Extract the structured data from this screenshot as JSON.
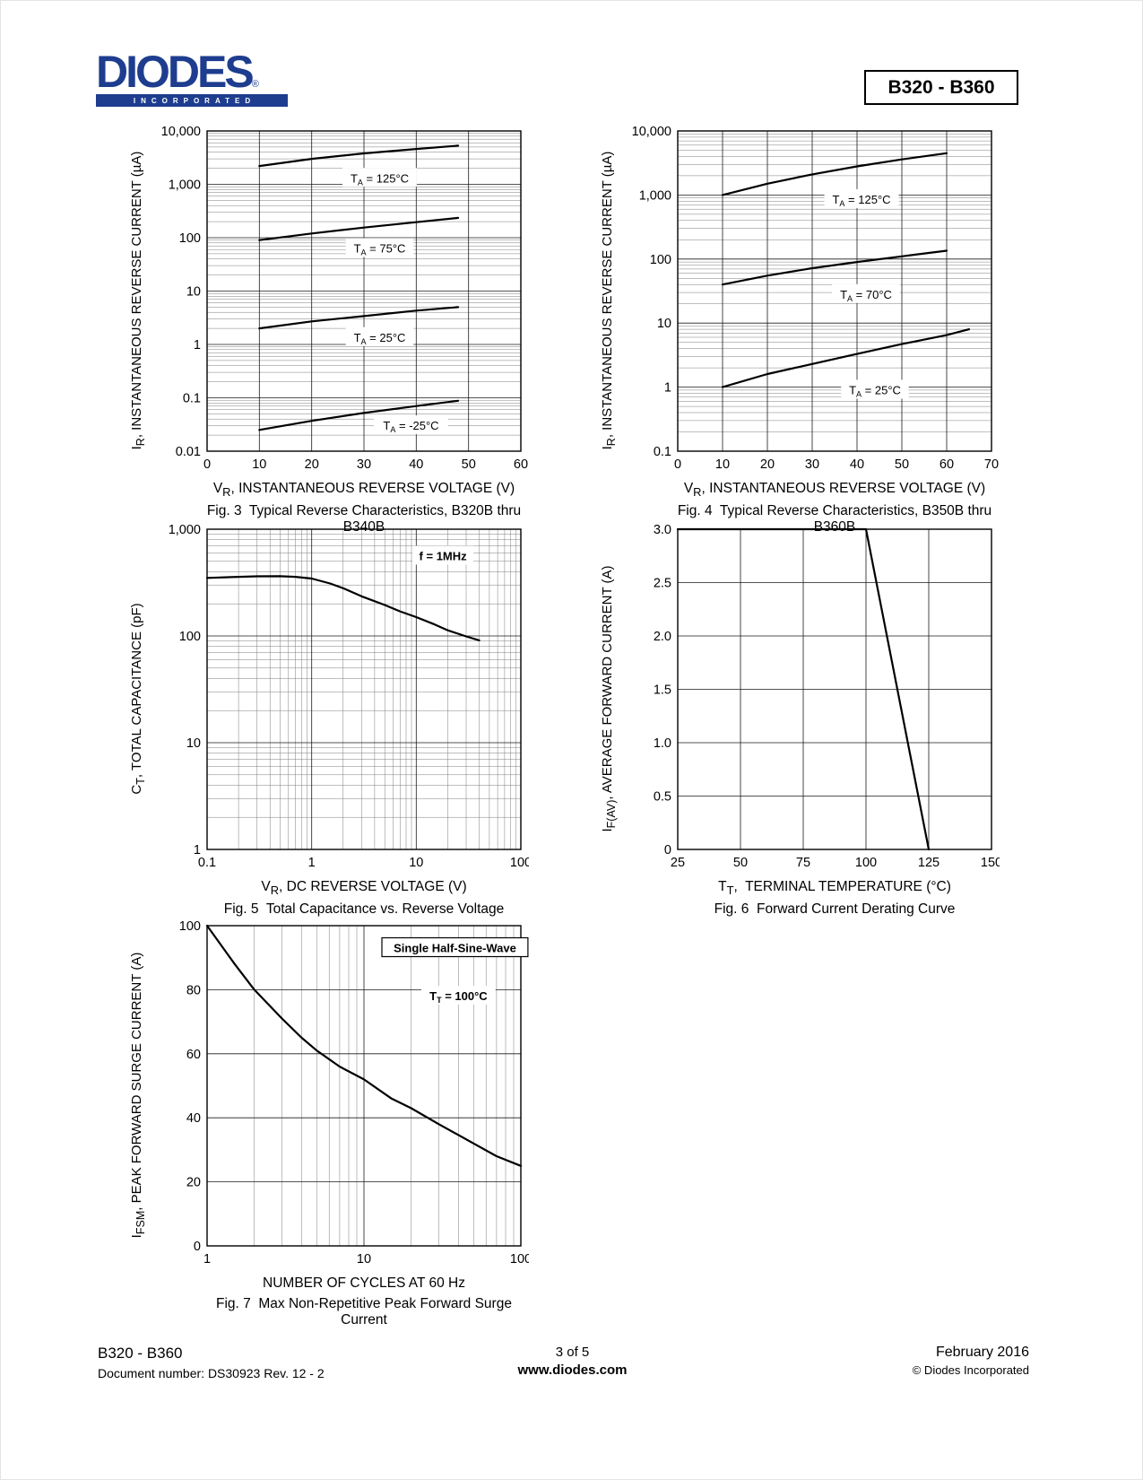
{
  "colors": {
    "logo_blue": "#1e3d8f"
  },
  "header": {
    "logo": {
      "name": "DIODES",
      "registered": "®",
      "tagline": "INCORPORATED"
    },
    "part_number_box": "B320 - B360"
  },
  "footer": {
    "left": {
      "line1": "B320 - B360",
      "line2": "Document number: DS30923 Rev. 12 - 2"
    },
    "center": {
      "line1": "3 of 5",
      "line2": "www.diodes.com"
    },
    "right": {
      "line1": "February 2016",
      "line2": "© Diodes Incorporated"
    }
  },
  "chart_data": [
    {
      "id": "fig3",
      "type": "line",
      "caption": "Fig. 3  Typical Reverse Characteristics, B320B thru B340B",
      "xlabel": "V~R~, INSTANTANEOUS REVERSE VOLTAGE (V)",
      "ylabel": "I~R~, INSTANTANEOUS REVERSE CURRENT (µA)",
      "xscale": "linear",
      "xlim": [
        0,
        60
      ],
      "xticks": [
        0,
        10,
        20,
        30,
        40,
        50,
        60
      ],
      "xtick_labels": [
        "0",
        "10",
        "20",
        "30",
        "40",
        "50",
        "60"
      ],
      "yscale": "log",
      "ylim": [
        0.01,
        10000
      ],
      "yticks": [
        0.01,
        0.1,
        1,
        10,
        100,
        1000,
        10000
      ],
      "ytick_labels": [
        "0.01",
        "0.1",
        "1",
        "10",
        "100",
        "1,000",
        "10,000"
      ],
      "grid": true,
      "series": [
        {
          "name": "TA = 125°C",
          "points": [
            [
              10,
              2200
            ],
            [
              20,
              3000
            ],
            [
              30,
              3800
            ],
            [
              40,
              4600
            ],
            [
              48,
              5300
            ]
          ]
        },
        {
          "name": "TA = 75°C",
          "points": [
            [
              10,
              90
            ],
            [
              20,
              120
            ],
            [
              30,
              155
            ],
            [
              40,
              195
            ],
            [
              48,
              235
            ]
          ]
        },
        {
          "name": "TA = 25°C",
          "points": [
            [
              10,
              2.0
            ],
            [
              20,
              2.7
            ],
            [
              30,
              3.4
            ],
            [
              40,
              4.3
            ],
            [
              48,
              5.0
            ]
          ]
        },
        {
          "name": "TA = -25°C",
          "points": [
            [
              10,
              0.025
            ],
            [
              20,
              0.037
            ],
            [
              30,
              0.052
            ],
            [
              40,
              0.07
            ],
            [
              48,
              0.088
            ]
          ]
        }
      ],
      "annotations": [
        {
          "x": 33,
          "y": 1300,
          "text": "T~A~ = 125°C",
          "whitebg": true
        },
        {
          "x": 33,
          "y": 63,
          "text": "T~A~ = 75°C",
          "whitebg": true
        },
        {
          "x": 33,
          "y": 1.35,
          "text": "T~A~ = 25°C",
          "whitebg": true
        },
        {
          "x": 39,
          "y": 0.03,
          "text": "T~A~ = -25°C",
          "whitebg": true
        }
      ]
    },
    {
      "id": "fig4",
      "type": "line",
      "caption": "Fig. 4  Typical Reverse Characteristics, B350B thru B360B",
      "xlabel": "V~R~, INSTANTANEOUS REVERSE VOLTAGE (V)",
      "ylabel": "I~R~, INSTANTANEOUS REVERSE CURRENT (µA)",
      "xscale": "linear",
      "xlim": [
        0,
        70
      ],
      "xticks": [
        0,
        10,
        20,
        30,
        40,
        50,
        60,
        70
      ],
      "xtick_labels": [
        "0",
        "10",
        "20",
        "30",
        "40",
        "50",
        "60",
        "70"
      ],
      "yscale": "log",
      "ylim": [
        0.1,
        10000
      ],
      "yticks": [
        0.1,
        1,
        10,
        100,
        1000,
        10000
      ],
      "ytick_labels": [
        "0.1",
        "1",
        "10",
        "100",
        "1,000",
        "10,000"
      ],
      "grid": true,
      "series": [
        {
          "name": "TA = 125°C",
          "points": [
            [
              10,
              1000
            ],
            [
              20,
              1500
            ],
            [
              30,
              2100
            ],
            [
              40,
              2800
            ],
            [
              50,
              3600
            ],
            [
              60,
              4500
            ]
          ]
        },
        {
          "name": "TA = 70°C",
          "points": [
            [
              10,
              40
            ],
            [
              20,
              55
            ],
            [
              30,
              72
            ],
            [
              40,
              90
            ],
            [
              50,
              110
            ],
            [
              60,
              135
            ]
          ]
        },
        {
          "name": "TA = 25°C",
          "points": [
            [
              10,
              1.0
            ],
            [
              20,
              1.6
            ],
            [
              30,
              2.3
            ],
            [
              40,
              3.3
            ],
            [
              50,
              4.7
            ],
            [
              60,
              6.5
            ],
            [
              65,
              8.0
            ]
          ]
        }
      ],
      "annotations": [
        {
          "x": 41,
          "y": 850,
          "text": "T~A~ = 125°C",
          "whitebg": true
        },
        {
          "x": 42,
          "y": 28,
          "text": "T~A~ = 70°C",
          "whitebg": true
        },
        {
          "x": 44,
          "y": 0.9,
          "text": "T~A~ = 25°C",
          "whitebg": true
        }
      ]
    },
    {
      "id": "fig5",
      "type": "line",
      "caption": "Fig. 5  Total Capacitance vs. Reverse Voltage",
      "xlabel": "V~R~, DC REVERSE VOLTAGE (V)",
      "ylabel": "C~T~, TOTAL CAPACITANCE (pF)",
      "xscale": "log",
      "xlim": [
        0.1,
        100
      ],
      "xticks": [
        0.1,
        1,
        10,
        100
      ],
      "xtick_labels": [
        "0.1",
        "1",
        "10",
        "100"
      ],
      "yscale": "log",
      "ylim": [
        1,
        1000
      ],
      "yticks": [
        1,
        10,
        100,
        1000
      ],
      "ytick_labels": [
        "1",
        "10",
        "100",
        "1,000"
      ],
      "grid": true,
      "series": [
        {
          "name": "CT",
          "points": [
            [
              0.1,
              350
            ],
            [
              0.2,
              358
            ],
            [
              0.3,
              362
            ],
            [
              0.5,
              363
            ],
            [
              0.7,
              358
            ],
            [
              1,
              345
            ],
            [
              1.5,
              310
            ],
            [
              2,
              280
            ],
            [
              3,
              235
            ],
            [
              5,
              195
            ],
            [
              7,
              170
            ],
            [
              10,
              150
            ],
            [
              15,
              128
            ],
            [
              20,
              113
            ],
            [
              30,
              99
            ],
            [
              40,
              91
            ]
          ]
        }
      ],
      "annotations": [
        {
          "x": 18,
          "y": 560,
          "text": "f = 1MHz",
          "bold": true,
          "whitebg": true
        }
      ]
    },
    {
      "id": "fig6",
      "type": "line",
      "caption": "Fig. 6  Forward Current Derating Curve",
      "xlabel": "T~T~,  TERMINAL TEMPERATURE (°C)",
      "ylabel": "I~F(AV)~, AVERAGE FORWARD CURRENT (A)",
      "xscale": "linear",
      "xlim": [
        25,
        150
      ],
      "xticks": [
        25,
        50,
        75,
        100,
        125,
        150
      ],
      "xtick_labels": [
        "25",
        "50",
        "75",
        "100",
        "125",
        "150"
      ],
      "yscale": "linear",
      "ylim": [
        0,
        3
      ],
      "yticks": [
        0,
        0.5,
        1,
        1.5,
        2,
        2.5,
        3
      ],
      "ytick_labels": [
        "0",
        "0.5",
        "1.0",
        "1.5",
        "2.0",
        "2.5",
        "3.0"
      ],
      "grid": true,
      "series": [
        {
          "name": "IF(AV)",
          "points": [
            [
              25,
              3.0
            ],
            [
              100,
              3.0
            ],
            [
              125,
              0
            ]
          ]
        }
      ],
      "annotations": []
    },
    {
      "id": "fig7",
      "type": "line",
      "caption": "Fig. 7  Max Non-Repetitive Peak Forward Surge Current",
      "xlabel": "NUMBER OF CYCLES AT 60 Hz",
      "ylabel": "I~FSM~, PEAK FORWARD SURGE CURRENT (A)",
      "xscale": "log",
      "xlim": [
        1,
        100
      ],
      "xticks": [
        1,
        10,
        100
      ],
      "xtick_labels": [
        "1",
        "10",
        "100"
      ],
      "yscale": "linear",
      "ylim": [
        0,
        100
      ],
      "yticks": [
        0,
        20,
        40,
        60,
        80,
        100
      ],
      "ytick_labels": [
        "0",
        "20",
        "40",
        "60",
        "80",
        "100"
      ],
      "grid": true,
      "series": [
        {
          "name": "IFSM",
          "points": [
            [
              1,
              100
            ],
            [
              1.5,
              88
            ],
            [
              2,
              80
            ],
            [
              3,
              71
            ],
            [
              4,
              65
            ],
            [
              5,
              61
            ],
            [
              7,
              56
            ],
            [
              10,
              52
            ],
            [
              15,
              46
            ],
            [
              20,
              43
            ],
            [
              30,
              38
            ],
            [
              50,
              32
            ],
            [
              70,
              28
            ],
            [
              100,
              25
            ]
          ]
        }
      ],
      "annotations": [
        {
          "x": 38,
          "y": 93,
          "text": "Single Half-Sine-Wave",
          "bold": true,
          "boxed": true,
          "whitebg": true
        },
        {
          "x": 40,
          "y": 78,
          "text": "T~T~ = 100°C",
          "bold": true,
          "whitebg": true
        }
      ]
    }
  ]
}
